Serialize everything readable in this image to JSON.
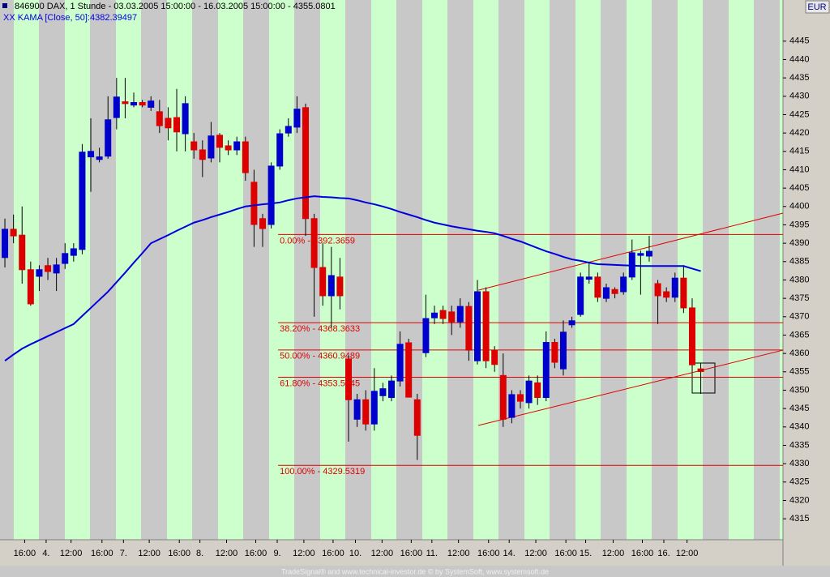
{
  "chart_data": {
    "type": "candlestick",
    "title": "846900  DAX, 1 Stunde - 03.03.2005 15:00:00 - 16.03.2005 15:00:00 - 4355.0801",
    "currency": "EUR",
    "footer": "TradeSignal® and www.technical-investor.de © by  SystemSoft, www.systemsoft.de",
    "up_color": "#0000cc",
    "down_color": "#dd0000",
    "open": [
      4386.1,
      4393.8,
      4392.2,
      4382.8,
      4381.0,
      4383.9,
      4381.9,
      4384.5,
      4386.7,
      4388.3,
      4413.5,
      4412.8,
      4413.7,
      4424.2,
      4428.5,
      4427.6,
      4428.3,
      4427.0,
      4425.8,
      4424.0,
      4424.2,
      4419.8,
      4417.6,
      4415.4,
      4413.2,
      4419.4,
      4416.5,
      4415.4,
      4417.6,
      4406.6,
      4396.7,
      4395.1,
      4411.0,
      4420.0,
      4421.6,
      4426.9,
      4396.7,
      4383.4,
      4375.7,
      4380.8,
      4358.5,
      4342.1,
      4347.4,
      4340.8,
      4348.5,
      4348.0,
      4352.5,
      4362.9,
      4347.4,
      4360.2,
      4369.7,
      4371.7,
      4371.3,
      4368.6,
      4372.8,
      4358.0,
      4376.8,
      4360.9,
      4354.0,
      4342.6,
      4348.8,
      4346.6,
      4352.0,
      4348.0,
      4363.0,
      4355.8,
      4367.8,
      4370.6,
      4380.2,
      4380.8,
      4375.0,
      4377.4,
      4376.8,
      4380.8,
      4386.7,
      4386.5,
      4379.0,
      4376.8,
      4375.3,
      4380.5,
      4372.4,
      4355.8
    ],
    "high": [
      4396.7,
      4397.8,
      4400.0,
      4385.0,
      4384.0,
      4386.0,
      4386.0,
      4390.0,
      4390.0,
      4417.0,
      4424.0,
      4416.0,
      4430.0,
      4435.0,
      4435.0,
      4431.0,
      4429.0,
      4430.0,
      4429.0,
      4427.0,
      4432.0,
      4430.0,
      4420.0,
      4418.0,
      4423.0,
      4420.0,
      4418.0,
      4419.0,
      4419.0,
      4410.0,
      4398.0,
      4412.0,
      4421.0,
      4424.0,
      4430.0,
      4428.0,
      4398.0,
      4390.0,
      4389.0,
      4386.0,
      4359.5,
      4349.0,
      4350.0,
      4356.0,
      4352.0,
      4354.0,
      4366.0,
      4364.0,
      4349.0,
      4376.0,
      4373.0,
      4373.0,
      4373.0,
      4375.0,
      4374.0,
      4380.0,
      4378.0,
      4362.0,
      4360.0,
      4350.0,
      4350.0,
      4354.0,
      4354.0,
      4366.0,
      4364.0,
      4369.0,
      4370.0,
      4382.0,
      4385.0,
      4382.0,
      4379.0,
      4378.0,
      4382.0,
      4391.0,
      4388.0,
      4392.0,
      4380.0,
      4378.0,
      4382.0,
      4384.0,
      4375.0,
      4357.5
    ],
    "low": [
      4383.4,
      4390.0,
      4379.0,
      4373.0,
      4377.0,
      4380.0,
      4377.0,
      4383.0,
      4385.0,
      4387.0,
      4404.0,
      4412.0,
      4413.0,
      4421.0,
      4424.0,
      4427.0,
      4427.0,
      4426.0,
      4420.0,
      4418.0,
      4415.0,
      4415.0,
      4413.0,
      4408.0,
      4412.0,
      4412.0,
      4414.0,
      4414.0,
      4407.0,
      4389.0,
      4389.0,
      4394.0,
      4410.0,
      4419.0,
      4420.0,
      4392.0,
      4370.0,
      4373.0,
      4367.0,
      4372.0,
      4336.0,
      4340.0,
      4339.0,
      4339.0,
      4347.0,
      4347.0,
      4351.0,
      4348.0,
      4331.0,
      4359.0,
      4368.0,
      4368.0,
      4365.0,
      4367.0,
      4358.0,
      4357.0,
      4356.0,
      4355.0,
      4340.0,
      4341.0,
      4345.0,
      4345.0,
      4346.0,
      4347.0,
      4356.0,
      4354.0,
      4367.0,
      4370.0,
      4379.0,
      4374.0,
      4374.0,
      4375.0,
      4376.0,
      4380.0,
      4376.0,
      4385.0,
      4368.0,
      4374.0,
      4374.0,
      4371.0,
      4356.0,
      4349.0
    ],
    "close": [
      4393.8,
      4392.0,
      4382.8,
      4373.5,
      4382.8,
      4382.3,
      4384.1,
      4387.2,
      4388.5,
      4414.8,
      4415.0,
      4413.5,
      4423.6,
      4429.8,
      4428.0,
      4428.3,
      4427.6,
      4428.7,
      4422.0,
      4421.4,
      4420.3,
      4428.0,
      4415.4,
      4412.8,
      4419.2,
      4416.1,
      4415.4,
      4417.6,
      4409.2,
      4395.1,
      4394.0,
      4411.0,
      4419.8,
      4421.8,
      4426.5,
      4396.7,
      4383.4,
      4375.7,
      4381.2,
      4375.7,
      4347.4,
      4347.4,
      4340.8,
      4349.7,
      4350.4,
      4352.5,
      4362.5,
      4348.1,
      4337.7,
      4369.5,
      4371.0,
      4369.5,
      4368.6,
      4372.8,
      4360.9,
      4376.8,
      4358.0,
      4357.0,
      4342.1,
      4348.8,
      4347.0,
      4352.5,
      4348.0,
      4363.0,
      4357.6,
      4365.8,
      4368.9,
      4380.8,
      4380.8,
      4375.3,
      4377.9,
      4376.3,
      4380.8,
      4387.4,
      4387.2,
      4387.8,
      4375.7,
      4375.3,
      4380.5,
      4372.4,
      4356.9,
      4355.0801
    ],
    "series": [
      {
        "name": "XX KAMA [Close, 50]:4382.39497",
        "color": "#0000dd",
        "values": [
          4358.0,
          4359.7,
          4361.3,
          4362.5,
          4363.6,
          4364.7,
          4365.8,
          4366.9,
          4368.0,
          4370.2,
          4372.4,
          4374.6,
          4376.8,
          4379.4,
          4382.0,
          4384.7,
          4387.3,
          4390.0,
          4391.1,
          4392.2,
          4393.4,
          4394.5,
          4395.6,
          4396.3,
          4397.1,
          4397.8,
          4398.5,
          4399.3,
          4400.0,
          4400.3,
          4400.6,
          4400.8,
          4401.1,
          4401.7,
          4402.2,
          4402.5,
          4402.8,
          4402.6,
          4402.5,
          4402.3,
          4402.2,
          4401.7,
          4401.1,
          4400.6,
          4400.0,
          4399.3,
          4398.5,
          4397.8,
          4397.1,
          4396.3,
          4395.6,
          4395.1,
          4394.6,
          4394.2,
          4393.8,
          4393.4,
          4393.1,
          4392.7,
          4392.0,
          4391.2,
          4390.5,
          4389.6,
          4388.7,
          4387.8,
          4387.1,
          4386.3,
          4385.6,
          4385.2,
          4384.7,
          4384.3,
          4384.2,
          4384.1,
          4384.0,
          4383.9,
          4383.8,
          4383.8,
          4383.8,
          4383.8,
          4383.8,
          4383.8,
          4383.1,
          4382.4
        ]
      }
    ],
    "fib_color": "#dd0000",
    "fib_start": 31.8,
    "fib_levels": [
      {
        "label": "0.00% - 4392.3659",
        "value": 4392.3659
      },
      {
        "label": "38.20% - 4368.3633",
        "value": 4368.3633
      },
      {
        "label": "50.00% - 4360.9489",
        "value": 4360.9489
      },
      {
        "label": "61.80% - 4353.5345",
        "value": 4353.5345
      },
      {
        "label": "100.00% - 4329.5319",
        "value": 4329.5319
      }
    ],
    "trendlines": [
      {
        "x": [
          55.1,
          90.57
        ],
        "y": [
          4377.2,
          4398.2
        ]
      },
      {
        "x": [
          55.1,
          90.57
        ],
        "y": [
          4340.4,
          4360.9
        ]
      }
    ],
    "xlim": [
      -0.57,
      90.57
    ],
    "ylim": [
      4309.3,
      4456.2
    ],
    "yticks": [
      4315,
      4320,
      4325,
      4330,
      4335,
      4340,
      4345,
      4350,
      4355,
      4360,
      4365,
      4370,
      4375,
      4380,
      4385,
      4390,
      4395,
      4400,
      4405,
      4410,
      4415,
      4420,
      4425,
      4430,
      4435,
      4440,
      4445
    ],
    "xticks": [
      {
        "value": 2.3,
        "label": "16:00"
      },
      {
        "value": 4.8,
        "label": "4."
      },
      {
        "value": 7.7,
        "label": "12:00"
      },
      {
        "value": 11.3,
        "label": "16:00"
      },
      {
        "value": 13.8,
        "label": "7."
      },
      {
        "value": 16.8,
        "label": "12:00"
      },
      {
        "value": 20.3,
        "label": "16:00"
      },
      {
        "value": 22.7,
        "label": "8."
      },
      {
        "value": 25.8,
        "label": "12:00"
      },
      {
        "value": 29.2,
        "label": "16:00"
      },
      {
        "value": 31.7,
        "label": "9."
      },
      {
        "value": 34.8,
        "label": "12:00"
      },
      {
        "value": 38.2,
        "label": "16:00"
      },
      {
        "value": 40.8,
        "label": "10."
      },
      {
        "value": 43.9,
        "label": "12:00"
      },
      {
        "value": 47.3,
        "label": "16:00"
      },
      {
        "value": 49.7,
        "label": "11."
      },
      {
        "value": 52.8,
        "label": "12:00"
      },
      {
        "value": 56.3,
        "label": "16:00"
      },
      {
        "value": 58.7,
        "label": "14."
      },
      {
        "value": 61.8,
        "label": "12:00"
      },
      {
        "value": 65.3,
        "label": "16:00"
      },
      {
        "value": 67.6,
        "label": "15."
      },
      {
        "value": 70.8,
        "label": "12:00"
      },
      {
        "value": 74.2,
        "label": "16:00"
      },
      {
        "value": 76.7,
        "label": "16."
      },
      {
        "value": 79.4,
        "label": "12:00"
      }
    ]
  }
}
